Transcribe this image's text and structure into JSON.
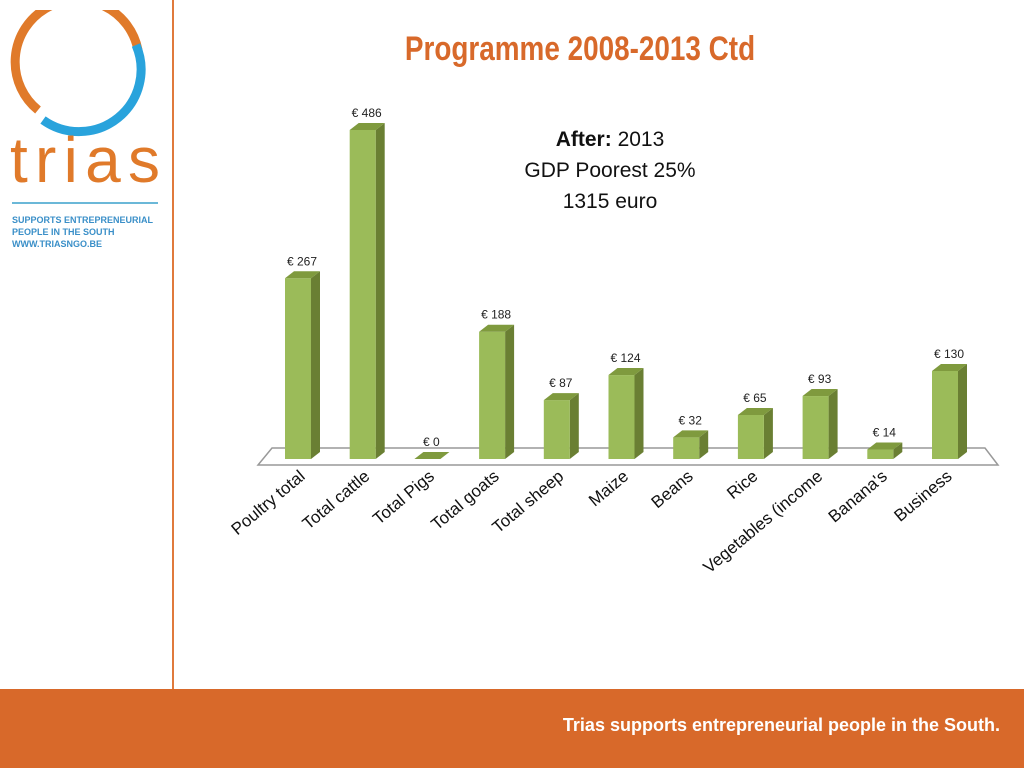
{
  "slide_title": "Programme 2008-2013 Ctd",
  "logo": {
    "wordmark": "trias",
    "tagline_lines": [
      "SUPPORTS ENTREPRENEURIAL",
      "PEOPLE IN THE SOUTH",
      "WWW.TRIASNGO.BE"
    ]
  },
  "note": {
    "bold": "After:",
    "year": "2013",
    "line2": "GDP Poorest 25%",
    "line3": "1315 euro"
  },
  "footer": "Trias supports entrepreneurial people in the South.",
  "colors": {
    "accent": "#d8692a",
    "bar_front": "#9bbb59",
    "bar_side": "#6a7f33",
    "bar_top": "#7f9a3e"
  },
  "chart_data": {
    "type": "bar",
    "title": "",
    "categories": [
      "Poultry total",
      "Total cattle",
      "Total Pigs",
      "Total goats",
      "Total sheep",
      "Maize",
      "Beans",
      "Rice",
      "Vegetables (income",
      "Banana's",
      "Business"
    ],
    "values": [
      267,
      486,
      0,
      188,
      87,
      124,
      32,
      65,
      93,
      14,
      130
    ],
    "data_labels": [
      "€ 267",
      "€ 486",
      "€ 0",
      "€ 188",
      "€ 87",
      "€ 124",
      "€ 32",
      "€ 65",
      "€ 93",
      "€ 14",
      "€ 130"
    ],
    "ylim": [
      0,
      486
    ],
    "grid": false,
    "xlabel": "",
    "ylabel": ""
  }
}
